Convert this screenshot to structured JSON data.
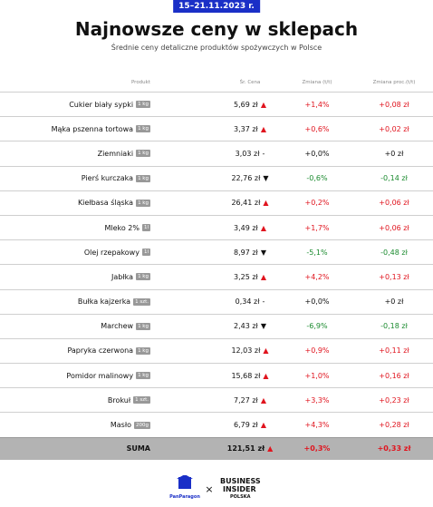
{
  "header": {
    "date": "15–21.11.2023 r.",
    "title": "Najnowsze ceny w sklepach",
    "subtitle": "Średnie ceny detaliczne produktów spożywczych w Polsce"
  },
  "table": {
    "columns": [
      "Produkt",
      "Śr. Cena",
      "Zmiana (t/t)",
      "Zmiana proc.(t/t)"
    ],
    "rows": [
      {
        "product": "Cukier biały sypki",
        "unit": "1 kg",
        "price": "5,69 zł",
        "arrow": "▲",
        "arrow_color": "#e0141e",
        "pct": "+1,4%",
        "abs": "+0,08 zł",
        "change_color": "#e0141e"
      },
      {
        "product": "Mąka pszenna tortowa",
        "unit": "1 kg",
        "price": "3,37 zł",
        "arrow": "▲",
        "arrow_color": "#e0141e",
        "pct": "+0,6%",
        "abs": "+0,02 zł",
        "change_color": "#e0141e"
      },
      {
        "product": "Ziemniaki",
        "unit": "1 kg",
        "price": "3,03 zł",
        "arrow": "-",
        "arrow_color": "#111111",
        "pct": "+0,0%",
        "abs": "+0 zł",
        "change_color": "#111111"
      },
      {
        "product": "Pierś kurczaka",
        "unit": "1 kg",
        "price": "22,76 zł",
        "arrow": "▼",
        "arrow_color": "#111111",
        "pct": "-0,6%",
        "abs": "-0,14 zł",
        "change_color": "#1a8a2e"
      },
      {
        "product": "Kiełbasa śląska",
        "unit": "1 kg",
        "price": "26,41 zł",
        "arrow": "▲",
        "arrow_color": "#e0141e",
        "pct": "+0,2%",
        "abs": "+0,06 zł",
        "change_color": "#e0141e"
      },
      {
        "product": "Mleko 2%",
        "unit": "1l",
        "price": "3,49 zł",
        "arrow": "▲",
        "arrow_color": "#e0141e",
        "pct": "+1,7%",
        "abs": "+0,06 zł",
        "change_color": "#e0141e"
      },
      {
        "product": "Olej rzepakowy",
        "unit": "1l",
        "price": "8,97 zł",
        "arrow": "▼",
        "arrow_color": "#111111",
        "pct": "-5,1%",
        "abs": "-0,48 zł",
        "change_color": "#1a8a2e"
      },
      {
        "product": "Jabłka",
        "unit": "1 kg",
        "price": "3,25 zł",
        "arrow": "▲",
        "arrow_color": "#e0141e",
        "pct": "+4,2%",
        "abs": "+0,13 zł",
        "change_color": "#e0141e"
      },
      {
        "product": "Bułka kajzerka",
        "unit": "1 szt.",
        "price": "0,34 zł",
        "arrow": "-",
        "arrow_color": "#111111",
        "pct": "+0,0%",
        "abs": "+0 zł",
        "change_color": "#111111"
      },
      {
        "product": "Marchew",
        "unit": "1 kg",
        "price": "2,43 zł",
        "arrow": "▼",
        "arrow_color": "#111111",
        "pct": "-6,9%",
        "abs": "-0,18 zł",
        "change_color": "#1a8a2e"
      },
      {
        "product": "Papryka czerwona",
        "unit": "1 kg",
        "price": "12,03 zł",
        "arrow": "▲",
        "arrow_color": "#e0141e",
        "pct": "+0,9%",
        "abs": "+0,11 zł",
        "change_color": "#e0141e"
      },
      {
        "product": "Pomidor malinowy",
        "unit": "1 kg",
        "price": "15,68 zł",
        "arrow": "▲",
        "arrow_color": "#e0141e",
        "pct": "+1,0%",
        "abs": "+0,16 zł",
        "change_color": "#e0141e"
      },
      {
        "product": "Brokuł",
        "unit": "1 szt.",
        "price": "7,27 zł",
        "arrow": "▲",
        "arrow_color": "#e0141e",
        "pct": "+3,3%",
        "abs": "+0,23 zł",
        "change_color": "#e0141e"
      },
      {
        "product": "Masło",
        "unit": "200g",
        "price": "6,79 zł",
        "arrow": "▲",
        "arrow_color": "#e0141e",
        "pct": "+4,3%",
        "abs": "+0,28 zł",
        "change_color": "#e0141e"
      }
    ],
    "total": {
      "product": "SUMA",
      "price": "121,51 zł",
      "arrow": "▲",
      "arrow_color": "#e0141e",
      "pct": "+0,3%",
      "abs": "+0,33 zł",
      "change_color": "#e0141e"
    }
  },
  "footer": {
    "left_logo": "PanParagon",
    "separator": "×",
    "right_logo_line1": "BUSINESS",
    "right_logo_line2": "INSIDER",
    "right_logo_line3": "POLSKA"
  }
}
